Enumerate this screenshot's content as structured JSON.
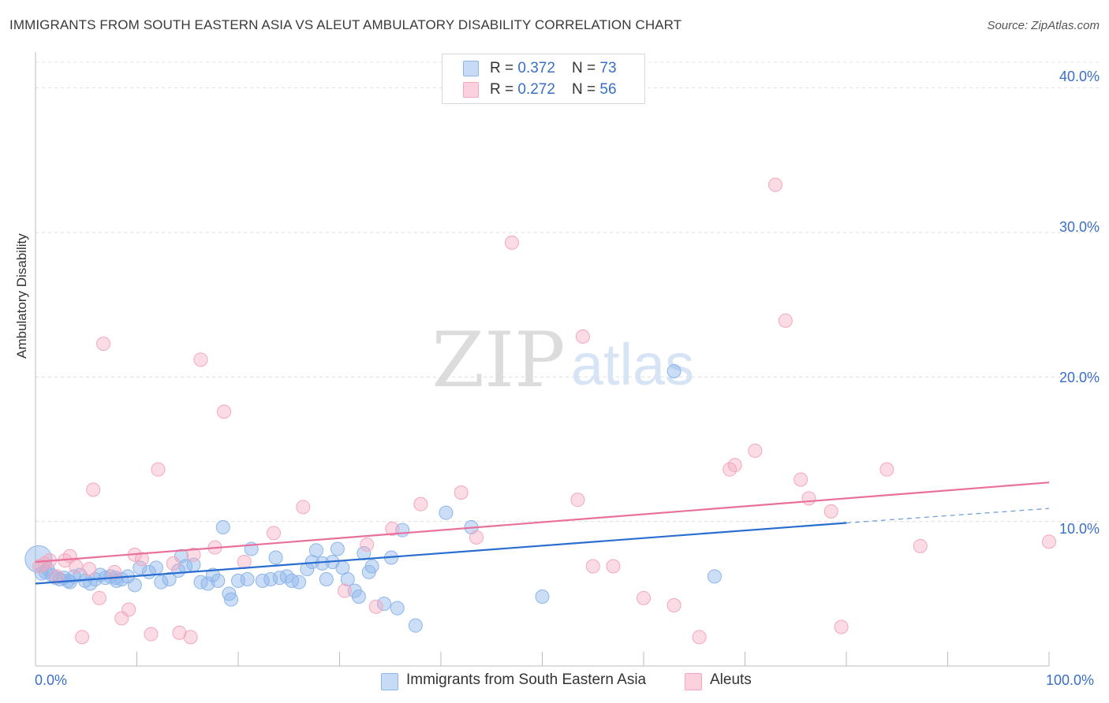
{
  "title": "IMMIGRANTS FROM SOUTH EASTERN ASIA VS ALEUT AMBULATORY DISABILITY CORRELATION CHART",
  "source": "Source: ZipAtlas.com",
  "watermark": {
    "zip": "ZIP",
    "atlas": "atlas"
  },
  "legend_top": [
    {
      "r_label": "R = ",
      "r_value": "0.372",
      "n_label": "N = ",
      "n_value": "73",
      "color": "#a9c8f0"
    },
    {
      "r_label": "R = ",
      "r_value": "0.272",
      "n_label": "N = ",
      "n_value": "56",
      "color": "#f6b8cb"
    }
  ],
  "bottom_legend": [
    {
      "label": "Immigrants from South Eastern Asia",
      "color": "#a9c8f0"
    },
    {
      "label": "Aleuts",
      "color": "#f6b8cb"
    }
  ],
  "chart_data": {
    "type": "scatter",
    "xlabel": "",
    "ylabel": "Ambulatory Disability",
    "xlim": [
      0,
      100
    ],
    "ylim": [
      0,
      42
    ],
    "x_tick_labels": [
      "0.0%",
      "100.0%"
    ],
    "y_ticks": [
      10,
      20,
      30,
      40
    ],
    "y_tick_labels": [
      "10.0%",
      "20.0%",
      "30.0%",
      "40.0%"
    ],
    "grid": true,
    "series": [
      {
        "name": "Immigrants from South Eastern Asia",
        "color": "#8db6ea",
        "line_color": "#2a6dd0",
        "trend": {
          "x": [
            0,
            80
          ],
          "y": [
            5.7,
            9.9
          ],
          "dashed_to": [
            100,
            10.9
          ]
        },
        "points": [
          [
            0.3,
            7.4
          ],
          [
            0.6,
            6.4
          ],
          [
            1.2,
            6.7
          ],
          [
            1.6,
            6.3
          ],
          [
            2.0,
            6.1
          ],
          [
            2.4,
            6.0
          ],
          [
            2.8,
            6.1
          ],
          [
            3.2,
            5.9
          ],
          [
            3.8,
            6.2
          ],
          [
            4.4,
            6.3
          ],
          [
            4.9,
            5.9
          ],
          [
            5.4,
            5.7
          ],
          [
            5.9,
            6.0
          ],
          [
            6.4,
            6.3
          ],
          [
            6.9,
            6.1
          ],
          [
            7.4,
            6.2
          ],
          [
            7.9,
            6.1
          ],
          [
            8.5,
            6.0
          ],
          [
            9.1,
            6.2
          ],
          [
            9.8,
            5.6
          ],
          [
            10.3,
            6.8
          ],
          [
            11.2,
            6.5
          ],
          [
            11.9,
            6.8
          ],
          [
            12.4,
            5.8
          ],
          [
            13.2,
            6.0
          ],
          [
            14.1,
            6.6
          ],
          [
            14.4,
            7.6
          ],
          [
            14.8,
            6.9
          ],
          [
            15.6,
            7.0
          ],
          [
            16.3,
            5.8
          ],
          [
            17.0,
            5.7
          ],
          [
            17.5,
            6.3
          ],
          [
            18.0,
            5.9
          ],
          [
            18.5,
            9.6
          ],
          [
            19.1,
            5.0
          ],
          [
            19.3,
            4.6
          ],
          [
            20.0,
            5.9
          ],
          [
            20.9,
            6.0
          ],
          [
            21.3,
            8.1
          ],
          [
            22.4,
            5.9
          ],
          [
            23.2,
            6.0
          ],
          [
            23.7,
            7.5
          ],
          [
            24.1,
            6.1
          ],
          [
            24.8,
            6.2
          ],
          [
            25.3,
            5.9
          ],
          [
            26.0,
            5.8
          ],
          [
            26.8,
            6.7
          ],
          [
            27.3,
            7.2
          ],
          [
            27.7,
            8.0
          ],
          [
            28.3,
            7.1
          ],
          [
            28.7,
            6.0
          ],
          [
            29.3,
            7.2
          ],
          [
            29.8,
            8.1
          ],
          [
            30.3,
            6.8
          ],
          [
            30.8,
            6.0
          ],
          [
            31.5,
            5.2
          ],
          [
            31.9,
            4.8
          ],
          [
            32.4,
            7.8
          ],
          [
            32.9,
            6.5
          ],
          [
            33.2,
            6.9
          ],
          [
            34.4,
            4.3
          ],
          [
            35.1,
            7.5
          ],
          [
            35.7,
            4.0
          ],
          [
            36.2,
            9.4
          ],
          [
            37.5,
            2.8
          ],
          [
            40.5,
            10.6
          ],
          [
            43.0,
            9.6
          ],
          [
            50.0,
            4.8
          ],
          [
            63.0,
            20.4
          ],
          [
            67.0,
            6.2
          ],
          [
            1.0,
            6.5
          ],
          [
            3.4,
            5.8
          ],
          [
            8.0,
            5.9
          ]
        ]
      },
      {
        "name": "Aleuts",
        "color": "#f4a7bf",
        "line_color": "#e8709a",
        "trend": {
          "x": [
            0,
            100
          ],
          "y": [
            7.2,
            12.7
          ]
        },
        "points": [
          [
            0.4,
            6.9
          ],
          [
            0.9,
            7.1
          ],
          [
            1.4,
            7.3
          ],
          [
            2.1,
            6.2
          ],
          [
            2.9,
            7.3
          ],
          [
            3.4,
            7.6
          ],
          [
            4.0,
            6.9
          ],
          [
            4.6,
            2.0
          ],
          [
            5.3,
            6.7
          ],
          [
            5.7,
            12.2
          ],
          [
            6.3,
            4.7
          ],
          [
            6.7,
            22.3
          ],
          [
            7.8,
            6.5
          ],
          [
            8.5,
            3.3
          ],
          [
            9.2,
            3.9
          ],
          [
            9.8,
            7.7
          ],
          [
            10.5,
            7.4
          ],
          [
            11.4,
            2.2
          ],
          [
            12.1,
            13.6
          ],
          [
            13.6,
            7.1
          ],
          [
            14.2,
            2.3
          ],
          [
            15.3,
            2.0
          ],
          [
            15.6,
            7.7
          ],
          [
            16.3,
            21.2
          ],
          [
            17.7,
            8.2
          ],
          [
            18.6,
            17.6
          ],
          [
            20.6,
            7.2
          ],
          [
            23.5,
            9.2
          ],
          [
            26.4,
            11.0
          ],
          [
            30.5,
            5.2
          ],
          [
            32.7,
            8.4
          ],
          [
            33.6,
            4.1
          ],
          [
            35.2,
            9.5
          ],
          [
            38.0,
            11.2
          ],
          [
            42.0,
            12.0
          ],
          [
            43.5,
            8.9
          ],
          [
            47.0,
            29.3
          ],
          [
            53.5,
            11.5
          ],
          [
            54.0,
            22.8
          ],
          [
            55.0,
            6.9
          ],
          [
            57.0,
            6.9
          ],
          [
            60.0,
            4.7
          ],
          [
            63.0,
            4.2
          ],
          [
            65.5,
            2.0
          ],
          [
            68.5,
            13.6
          ],
          [
            69.0,
            13.9
          ],
          [
            71.0,
            14.9
          ],
          [
            73.0,
            33.3
          ],
          [
            74.0,
            23.9
          ],
          [
            75.5,
            12.9
          ],
          [
            76.3,
            11.6
          ],
          [
            78.5,
            10.7
          ],
          [
            79.5,
            2.7
          ],
          [
            84.0,
            13.6
          ],
          [
            87.3,
            8.3
          ],
          [
            100,
            8.6
          ]
        ]
      }
    ]
  }
}
